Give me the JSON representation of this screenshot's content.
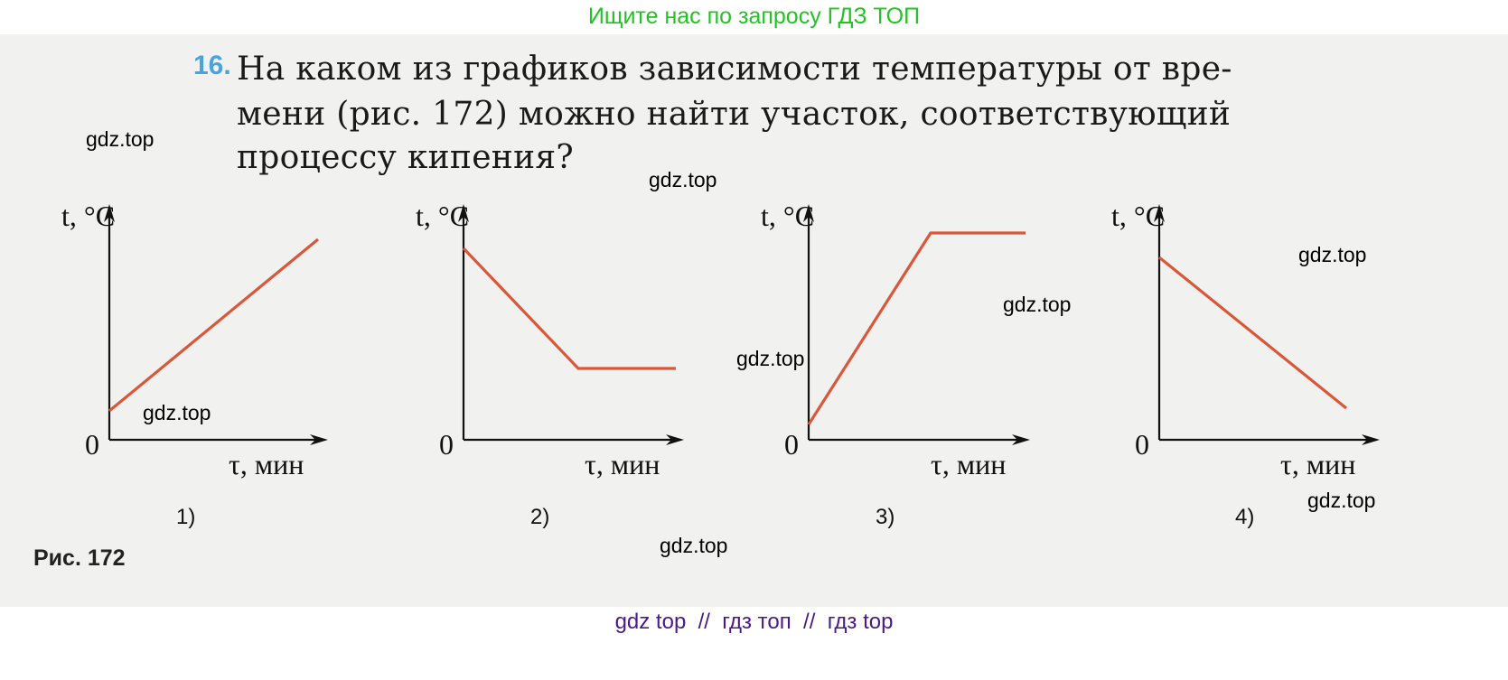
{
  "top_banner": "Ищите нас по запросу ГДЗ ТОП",
  "question": {
    "number": "16.",
    "lines": [
      "На каком из графиков зависимости температуры от вре-",
      "мени (рис. 172) можно найти участок, соответствующий",
      "процессу кипения?"
    ]
  },
  "figure": {
    "caption": "Рис. 172",
    "graphs": [
      {
        "label": "1)",
        "y_axis": "t, °C",
        "x_axis": "τ, мин",
        "origin": "0",
        "shape": "rising straight line",
        "line_color": "#d9583a"
      },
      {
        "label": "2)",
        "y_axis": "t, °C",
        "x_axis": "τ, мин",
        "origin": "0",
        "shape": "falling then flat",
        "line_color": "#d9583a"
      },
      {
        "label": "3)",
        "y_axis": "t, °C",
        "x_axis": "τ, мин",
        "origin": "0",
        "shape": "rising then flat",
        "line_color": "#d9583a"
      },
      {
        "label": "4)",
        "y_axis": "t, °C",
        "x_axis": "τ, мин",
        "origin": "0",
        "shape": "falling straight line",
        "line_color": "#d9583a"
      }
    ]
  },
  "watermarks": [
    "gdz.top",
    "gdz.top",
    "gdz.top",
    "gdz.top",
    "gdz.top",
    "gdz.top",
    "gdz.top",
    "gdz.top"
  ],
  "bottom_banner": "gdz top  //  гдз топ  //  гдз top"
}
